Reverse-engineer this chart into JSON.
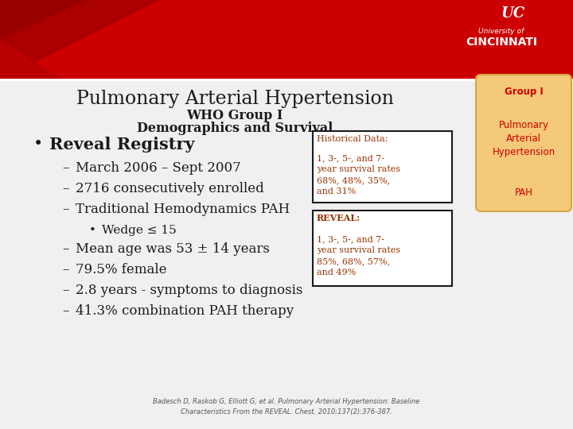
{
  "title_line1": "Pulmonary Arterial Hypertension",
  "title_line2": "WHO Group I",
  "title_line3": "Demographics and Survival",
  "bg_color": "#f0f0f0",
  "header_color": "#cc0000",
  "bullet_items": [
    {
      "level": 0,
      "text": "Reveal Registry",
      "bold": true
    },
    {
      "level": 1,
      "text": "March 2006 – Sept 2007",
      "bold": false
    },
    {
      "level": 1,
      "text": "2716 consecutively enrolled",
      "bold": false
    },
    {
      "level": 1,
      "text": "Traditional Hemodynamics PAH",
      "bold": false
    },
    {
      "level": 2,
      "text": "Wedge ≤ 15",
      "bold": false
    },
    {
      "level": 1,
      "text": "Mean age was 53 ± 14 years",
      "bold": false
    },
    {
      "level": 1,
      "text": "79.5% female",
      "bold": false
    },
    {
      "level": 1,
      "text": "2.8 years - symptoms to diagnosis",
      "bold": false
    },
    {
      "level": 1,
      "text": "41.3% combination PAH therapy",
      "bold": false
    }
  ],
  "box1_title": "Historical Data:",
  "box1_text": "1, 3-, 5-, and 7-\nyear survival rates\n68%, 48%, 35%,\nand 31%",
  "box2_title": "REVEAL:",
  "box2_text": "1, 3-, 5-, and 7-\nyear survival rates\n85%, 68%, 57%,\nand 49%",
  "sidebar_bg": "#f5c97a",
  "sidebar_text_color": "#cc0000",
  "sidebar_line1": "Group I",
  "sidebar_line2": "Pulmonary\nArterial\nHypertension",
  "sidebar_line3": "PAH",
  "citation": "Badesch D, Raskob G, Elliott G, et al. Pulmonary Arterial Hypertension: Baseline\nCharacteristics From the REVEAL. Chest. 2010;137(2):376-387.",
  "text_color_dark": "#1a1a1a",
  "box_border_color": "#1a1a1a",
  "box_title_color": "#993300",
  "box_text_color": "#993300"
}
